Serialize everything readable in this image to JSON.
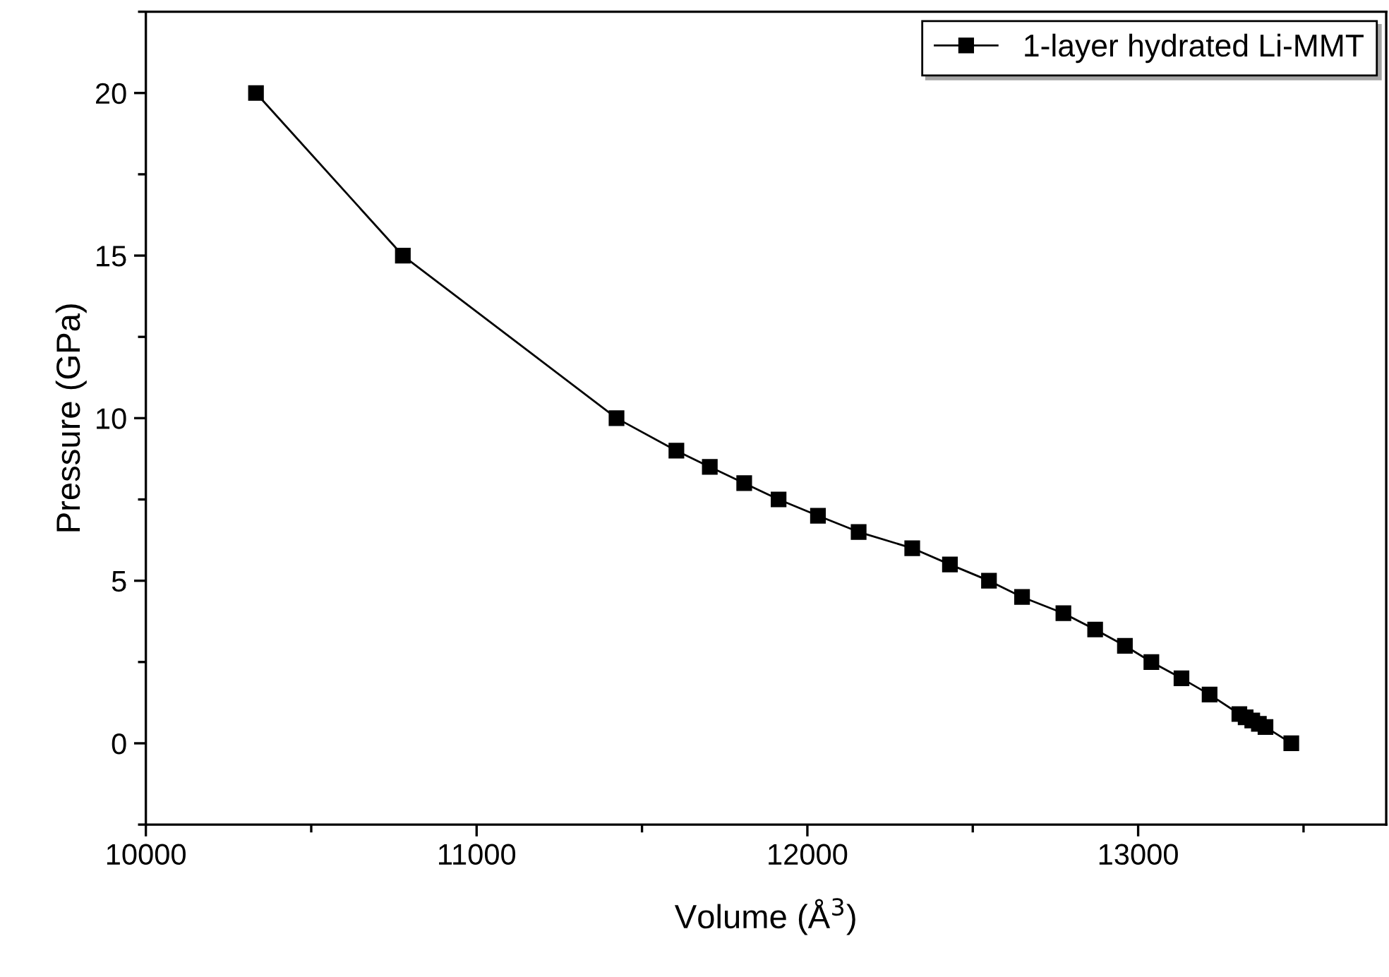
{
  "chart_data": {
    "type": "line",
    "xlabel": "Volume (Å$^{3}$)",
    "ylabel": "Pressure (GPa)",
    "xlim": [
      10000,
      13750
    ],
    "xticks": [
      10000,
      11000,
      12000,
      13000
    ],
    "ylim": [
      -2.5,
      22.5
    ],
    "yticks": [
      0,
      5,
      10,
      15,
      20
    ],
    "marker": "square",
    "line_style": "solid",
    "grid": false,
    "legend": "top right",
    "series": [
      {
        "name": "1-layer hydrated Li-MMT",
        "color": "#000000",
        "x": [
          10333,
          10777,
          11423,
          11604,
          11705,
          11809,
          11913,
          12032,
          12155,
          12317,
          12431,
          12549,
          12649,
          12774,
          12870,
          12960,
          13040,
          13131,
          13216,
          13306,
          13325,
          13345,
          13365,
          13385,
          13463
        ],
        "values": [
          20,
          15,
          10,
          9,
          8.5,
          8,
          7.5,
          7,
          6.5,
          6,
          5.5,
          5,
          4.5,
          4,
          3.5,
          3,
          2.5,
          2,
          1.5,
          0.9,
          0.8,
          0.7,
          0.6,
          0.5,
          0
        ]
      }
    ]
  }
}
